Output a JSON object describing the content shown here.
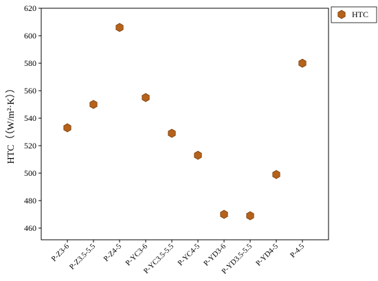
{
  "chart_data": {
    "type": "scatter",
    "y_label": "HTC（（W/m²·K））",
    "categories": [
      "P-Z3-6",
      "P-Z3.5-5.5",
      "P-Z4-5",
      "P-YC3-6",
      "P-YC3.5-5.5",
      "P-YC4-5",
      "P-YD3-6",
      "P-YD3.5-5.5",
      "P-YD4-5",
      "P-4.5"
    ],
    "series": [
      {
        "name": "HTC",
        "color": "#b5621b",
        "values": [
          533,
          550,
          606,
          555,
          529,
          513,
          470,
          469,
          499,
          580
        ]
      }
    ],
    "ylim": [
      451.5,
      620
    ],
    "yticks": [
      460,
      480,
      500,
      520,
      540,
      560,
      580,
      600,
      620
    ],
    "legend": "outside-upper-right",
    "grid": false
  }
}
